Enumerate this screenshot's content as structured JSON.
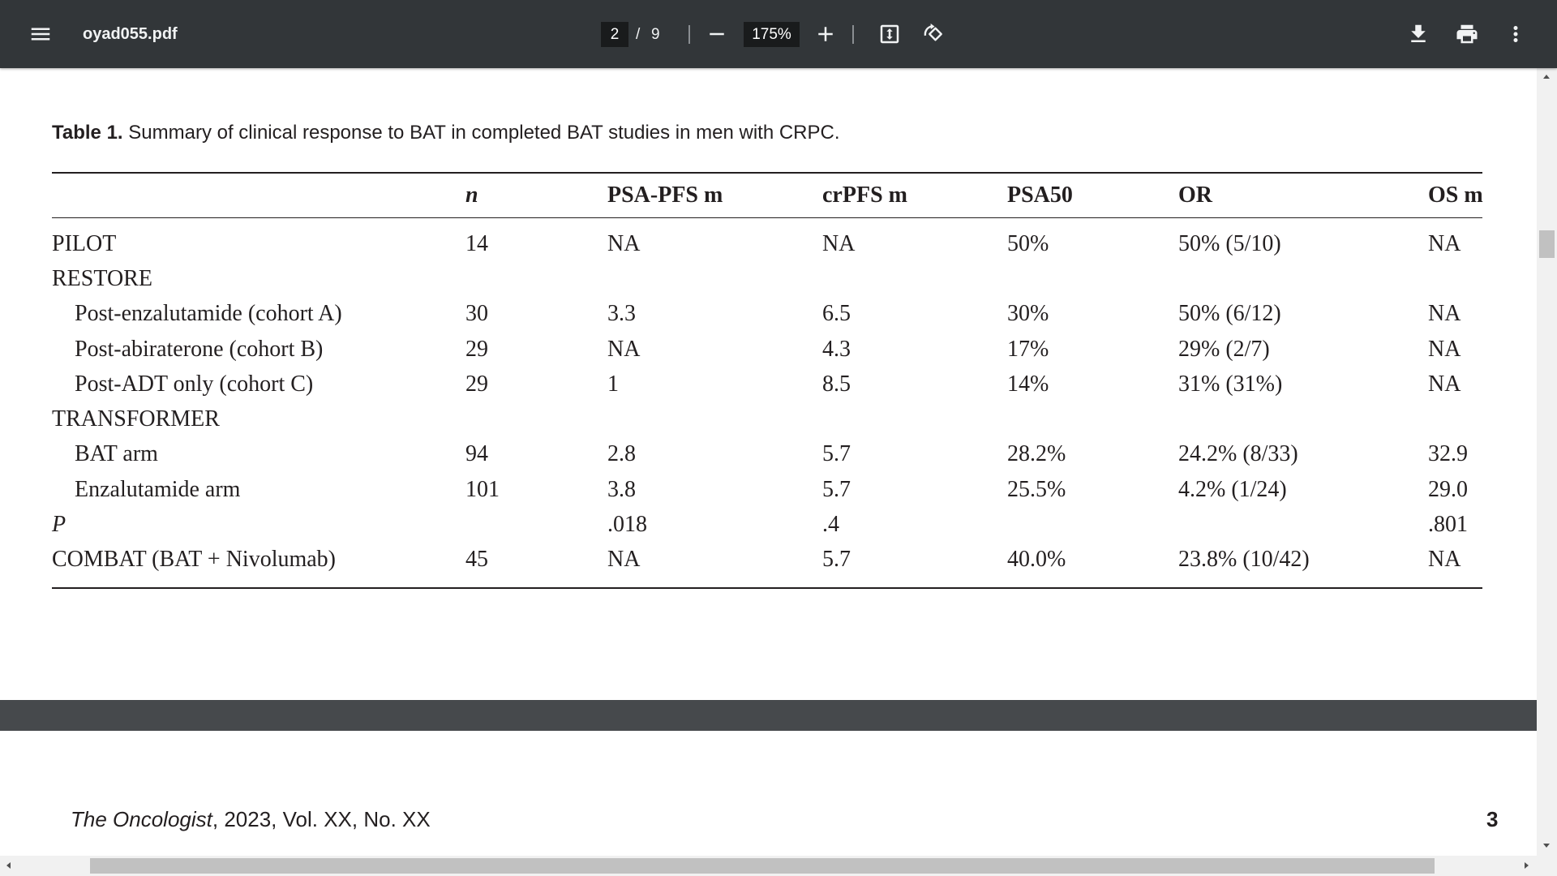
{
  "viewer": {
    "file_name": "oyad055.pdf",
    "page_current": "2",
    "page_separator": "/",
    "page_total": "9",
    "zoom": "175%"
  },
  "icons": {
    "menu": "menu-icon",
    "zoom_out": "minus-icon",
    "zoom_in": "plus-icon",
    "fit": "fit-to-page-icon",
    "rotate": "rotate-counterclockwise-icon",
    "download": "download-icon",
    "print": "print-icon",
    "more": "more-vertical-icon"
  },
  "colors": {
    "toolbar": "#323639",
    "page": "#ffffff",
    "page_gap": "#46494c",
    "text": "#231f20"
  },
  "table": {
    "caption_label": "Table 1.",
    "caption_text": "Summary of clinical response to BAT in completed BAT studies in men with CRPC.",
    "columns": [
      "n",
      "PSA-PFS m",
      "crPFS m",
      "PSA50",
      "OR",
      "OS m"
    ],
    "rows": [
      {
        "label": "PILOT",
        "cells": [
          "14",
          "NA",
          "NA",
          "50%",
          "50% (5/10)",
          "NA"
        ]
      },
      {
        "label": "RESTORE"
      },
      {
        "label": "Post-enzalutamide (cohort A)",
        "cells": [
          "30",
          "3.3",
          "6.5",
          "30%",
          "50% (6/12)",
          "NA"
        ]
      },
      {
        "label": "Post-abiraterone (cohort B)",
        "cells": [
          "29",
          "NA",
          "4.3",
          "17%",
          "29% (2/7)",
          "NA"
        ]
      },
      {
        "label": "Post-ADT only (cohort C)",
        "cells": [
          "29",
          "1",
          "8.5",
          "14%",
          "31% (31%)",
          "NA"
        ]
      },
      {
        "label": "TRANSFORMER"
      },
      {
        "label": "BAT arm",
        "cells": [
          "94",
          "2.8",
          "5.7",
          "28.2%",
          "24.2% (8/33)",
          "32.9"
        ]
      },
      {
        "label": "Enzalutamide arm",
        "cells": [
          "101",
          "3.8",
          "5.7",
          "25.5%",
          "4.2% (1/24)",
          "29.0"
        ]
      },
      {
        "label": "P",
        "cells": [
          null,
          ".018",
          ".4",
          null,
          null,
          ".801"
        ]
      },
      {
        "label": "COMBAT (BAT + Nivolumab)",
        "cells": [
          "45",
          "NA",
          "5.7",
          "40.0%",
          "23.8% (10/42)",
          "NA"
        ]
      }
    ]
  },
  "footer": {
    "journal": "The Oncologist",
    "citation": ", 2023, Vol. XX, No. XX",
    "page_number": "3"
  }
}
